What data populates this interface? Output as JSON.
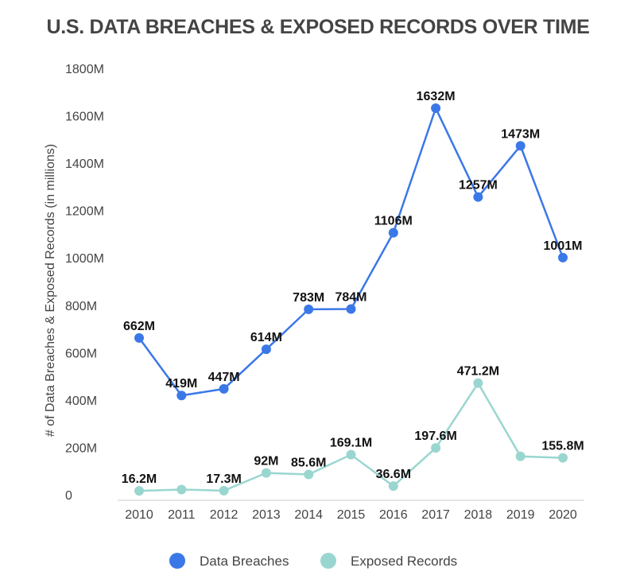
{
  "chart_data": {
    "type": "line",
    "title": "U.S. DATA BREACHES & EXPOSED RECORDS OVER TIME",
    "xlabel": "",
    "ylabel": "# of Data Breaches & Exposed Records (in millions)",
    "ylim": [
      0,
      1800
    ],
    "yticks": [
      "0",
      "200M",
      "400M",
      "600M",
      "800M",
      "1000M",
      "1200M",
      "1400M",
      "1600M",
      "1800M"
    ],
    "grid": false,
    "legend": "bottom",
    "categories": [
      "2010",
      "2011",
      "2012",
      "2013",
      "2014",
      "2015",
      "2016",
      "2017",
      "2018",
      "2019",
      "2020"
    ],
    "series": [
      {
        "name": "Data Breaches",
        "color": "#3b78e7",
        "values": [
          662,
          419,
          447,
          614,
          783,
          784,
          1106,
          1632,
          1257,
          1473,
          1001
        ],
        "labels": [
          "662M",
          "419M",
          "447M",
          "614M",
          "783M",
          "784M",
          "1106M",
          "1632M",
          "1257M",
          "1473M",
          "1001M"
        ]
      },
      {
        "name": "Exposed Records",
        "color": "#9ad6d0",
        "values": [
          16.2,
          22,
          17.3,
          92,
          85.6,
          169.1,
          36.6,
          197.6,
          471.2,
          162,
          155.8
        ],
        "labels": [
          "16.2M",
          "",
          "17.3M",
          "92M",
          "85.6M",
          "169.1M",
          "36.6M",
          "197.6M",
          "471.2M",
          "",
          "155.8M"
        ]
      }
    ]
  }
}
